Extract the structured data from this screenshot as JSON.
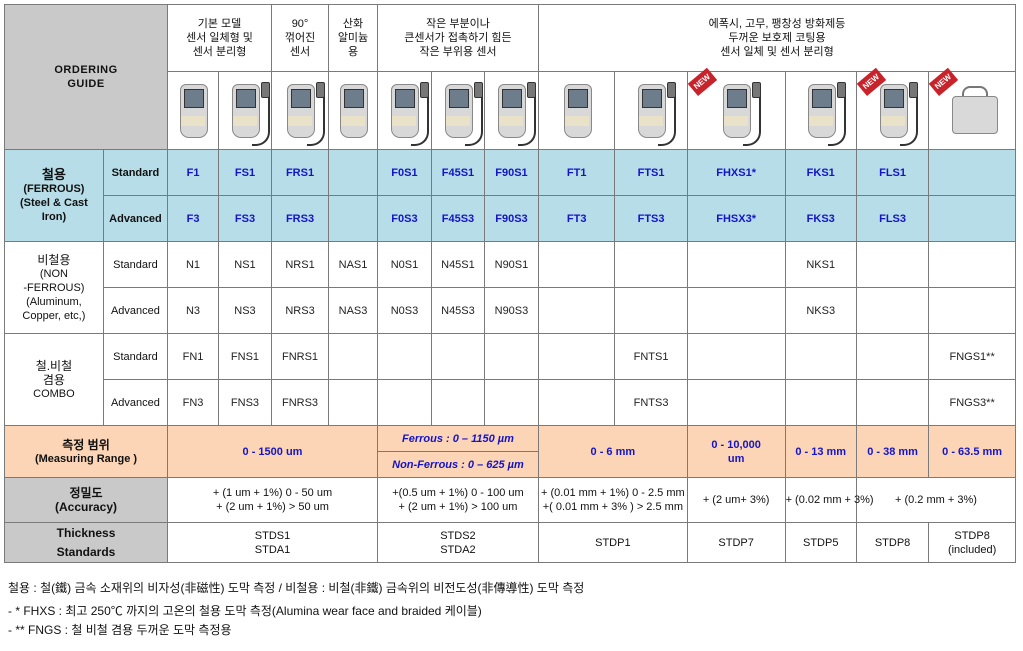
{
  "title": [
    "ORDERING",
    "GUIDE"
  ],
  "groups": [
    {
      "label": [
        "기본 모델",
        "센서 일체형 및",
        "센서 분리형"
      ]
    },
    {
      "label": [
        "90°",
        "꺾어진",
        "센서"
      ]
    },
    {
      "label": [
        "산화",
        "알미늄",
        "용"
      ]
    },
    {
      "label": [
        "작은 부분이나",
        "큰센서가 접촉하기 힘든",
        "작은 부위용 센서"
      ]
    },
    {
      "label": [
        "에폭시, 고무, 팽창성 방화제등",
        "두꺼운 보호제 코팅용",
        "센서 일체 및 센서 분리형"
      ]
    }
  ],
  "product_images": [
    {
      "icon": "integrated-gauge-icon"
    },
    {
      "icon": "separate-probe-gauge-icon"
    },
    {
      "icon": "right-angle-probe-gauge-icon"
    },
    {
      "icon": "anodize-gauge-icon"
    },
    {
      "icon": "micro-probe-gauge-icon"
    },
    {
      "icon": "45-degree-probe-gauge-icon"
    },
    {
      "icon": "90-degree-probe-gauge-icon"
    },
    {
      "icon": "thick-integrated-gauge-icon"
    },
    {
      "icon": "thick-separate-probe-gauge-icon"
    },
    {
      "icon": "high-temp-probe-gauge-icon",
      "badge": "NEW"
    },
    {
      "icon": "thick-separate-probe-gauge-icon"
    },
    {
      "icon": "large-probe-gauge-icon",
      "badge": "NEW"
    },
    {
      "icon": "case-gauge-icon",
      "badge": "NEW"
    }
  ],
  "ferrous": {
    "label": [
      "철용",
      "(FERROUS)",
      "(Steel & Cast",
      "Iron)"
    ],
    "standard_label": "Standard",
    "advanced_label": "Advanced",
    "standard": [
      "F1",
      "FS1",
      "FRS1",
      "",
      "F0S1",
      "F45S1",
      "F90S1",
      "FT1",
      "FTS1",
      "FHXS1*",
      "FKS1",
      "FLS1",
      ""
    ],
    "advanced": [
      "F3",
      "FS3",
      "FRS3",
      "",
      "F0S3",
      "F45S3",
      "F90S3",
      "FT3",
      "FTS3",
      "FHSX3*",
      "FKS3",
      "FLS3",
      ""
    ]
  },
  "nonferrous": {
    "label": [
      "비철용",
      "(NON",
      "-FERROUS)",
      "(Aluminum,",
      "Copper, etc,)"
    ],
    "standard_label": "Standard",
    "advanced_label": "Advanced",
    "standard": [
      "N1",
      "NS1",
      "NRS1",
      "NAS1",
      "N0S1",
      "N45S1",
      "N90S1",
      "",
      "",
      "",
      "NKS1",
      "",
      ""
    ],
    "advanced": [
      "N3",
      "NS3",
      "NRS3",
      "NAS3",
      "N0S3",
      "N45S3",
      "N90S3",
      "",
      "",
      "",
      "NKS3",
      "",
      ""
    ]
  },
  "combo": {
    "label": [
      "철.비철",
      "겸용",
      "COMBO"
    ],
    "standard_label": "Standard",
    "advanced_label": "Advanced",
    "standard": [
      "FN1",
      "FNS1",
      "FNRS1",
      "",
      "",
      "",
      "",
      "",
      "FNTS1",
      "",
      "",
      "",
      "FNGS1**"
    ],
    "advanced": [
      "FN3",
      "FNS3",
      "FNRS3",
      "",
      "",
      "",
      "",
      "",
      "FNTS3",
      "",
      "",
      "",
      "FNGS3**"
    ]
  },
  "measuring_range": {
    "label": [
      "측정 범위",
      "(Measuring Range )"
    ],
    "basic": "0 - 1500 um",
    "small_ferrous": "Ferrous : 0 – 1150 µm",
    "small_nonferrous": "Non-Ferrous : 0 – 625 µm",
    "ft": "0 - 6 mm",
    "fhxs": [
      "0 - 10,000",
      "um"
    ],
    "fks": "0 - 13 mm",
    "fls": "0 - 38 mm",
    "fngs": "0 - 63.5 mm"
  },
  "accuracy": {
    "label": [
      "정밀도",
      "(Accuracy)"
    ],
    "basic": [
      "+ (1 um + 1%)  0 - 50 um",
      "+ (2 um + 1%)  > 50 um"
    ],
    "small": [
      "+(0.5 um + 1%)  0 - 100 um",
      "+ (2 um + 1%)  > 100 um"
    ],
    "ft": [
      "+ (0.01 mm + 1%)   0 - 2.5 mm",
      "+( 0.01 mm + 3% )  > 2.5 mm"
    ],
    "fhxs": "+ (2 um+ 3%)",
    "fks": "+ (0.02 mm + 3%)",
    "fls_fngs": "+ (0.2 mm + 3%)"
  },
  "standards": {
    "label": [
      "Thickness",
      "Standards"
    ],
    "basic": [
      "STDS1",
      "STDA1"
    ],
    "small": [
      "STDS2",
      "STDA2"
    ],
    "ft": "STDP1",
    "fhxs": "STDP7",
    "fks": "STDP5",
    "fls": "STDP8",
    "fngs": [
      "STDP8",
      "(included)"
    ]
  },
  "notes": {
    "line1": "철용 : 철(鐵) 금속 소재위의 비자성(非磁性) 도막 측정 / 비철용 : 비철(非鐵) 금속위의 비전도성(非傳導性) 도막 측정",
    "line2": "- * FHXS : 최고 250℃ 까지의 고온의 철용 도막 측정(Alumina wear face and braided 케이블)",
    "line3": "- ** FNGS : 철 비철 겸용 두꺼운 도막 측정용"
  },
  "colors": {
    "header_gray": "#c9c9c9",
    "ferrous_blue": "#b7dde8",
    "range_peach": "#fbd5b5",
    "code_blue": "#1414c8",
    "new_badge_red": "#c8222a"
  }
}
